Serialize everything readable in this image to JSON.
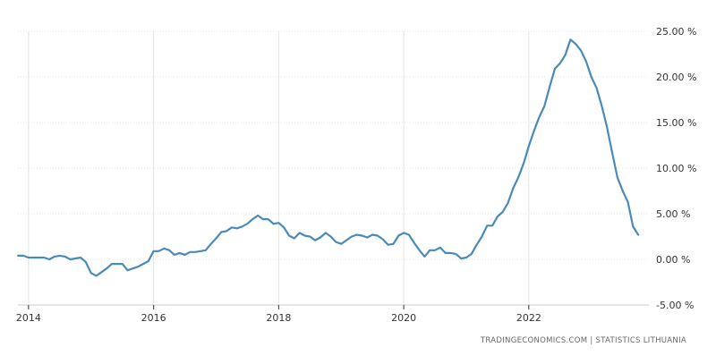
{
  "colors": {
    "line": "#4a8ab8",
    "grid": "#e4e4e4",
    "axis": "#333333"
  },
  "source": "TRADINGECONOMICS.COM  |  STATISTICS LITHUANIA",
  "chart_data": {
    "type": "line",
    "title": "",
    "xlabel": "",
    "ylabel": "",
    "xlim": [
      2013.83,
      2023.92
    ],
    "ylim": [
      -5,
      25
    ],
    "grid": true,
    "y_axis_position": "right",
    "x_ticks": [
      {
        "value": 2014,
        "label": "2014"
      },
      {
        "value": 2016,
        "label": "2016"
      },
      {
        "value": 2018,
        "label": "2018"
      },
      {
        "value": 2020,
        "label": "2020"
      },
      {
        "value": 2022,
        "label": "2022"
      }
    ],
    "y_ticks": [
      {
        "value": 25,
        "label": "25.00 %"
      },
      {
        "value": 20,
        "label": "20.00 %"
      },
      {
        "value": 15,
        "label": "15.00 %"
      },
      {
        "value": 10,
        "label": "10.00 %"
      },
      {
        "value": 5,
        "label": "5.00 %"
      },
      {
        "value": 0,
        "label": "0.00 %"
      },
      {
        "value": -5,
        "label": "-5.00 %"
      }
    ],
    "series": [
      {
        "start": "2013-11",
        "frequency": "monthly",
        "values": [
          0.4,
          0.4,
          0.2,
          0.2,
          0.2,
          0.2,
          0.0,
          0.3,
          0.4,
          0.3,
          0.0,
          0.1,
          0.2,
          -0.3,
          -1.5,
          -1.8,
          -1.4,
          -1.0,
          -0.5,
          -0.5,
          -0.5,
          -1.2,
          -1.0,
          -0.8,
          -0.5,
          -0.2,
          0.9,
          0.9,
          1.2,
          1.0,
          0.5,
          0.7,
          0.5,
          0.8,
          0.8,
          0.9,
          1.0,
          1.7,
          2.3,
          3.0,
          3.1,
          3.5,
          3.4,
          3.6,
          3.9,
          4.4,
          4.8,
          4.4,
          4.4,
          3.9,
          4.0,
          3.5,
          2.6,
          2.3,
          2.9,
          2.6,
          2.5,
          2.1,
          2.4,
          2.9,
          2.5,
          1.9,
          1.7,
          2.1,
          2.5,
          2.7,
          2.6,
          2.4,
          2.7,
          2.6,
          2.2,
          1.6,
          1.7,
          2.6,
          2.9,
          2.7,
          1.8,
          1.0,
          0.3,
          1.0,
          1.0,
          1.3,
          0.7,
          0.7,
          0.6,
          0.1,
          0.2,
          0.6,
          1.6,
          2.5,
          3.7,
          3.7,
          4.7,
          5.2,
          6.2,
          7.8,
          9.0,
          10.5,
          12.4,
          14.1,
          15.6,
          16.8,
          18.9,
          20.9,
          21.5,
          22.4,
          24.1,
          23.6,
          22.9,
          21.7,
          20.0,
          18.8,
          16.8,
          14.5,
          11.7,
          9.0,
          7.5,
          6.3,
          3.6,
          2.7
        ]
      }
    ]
  }
}
